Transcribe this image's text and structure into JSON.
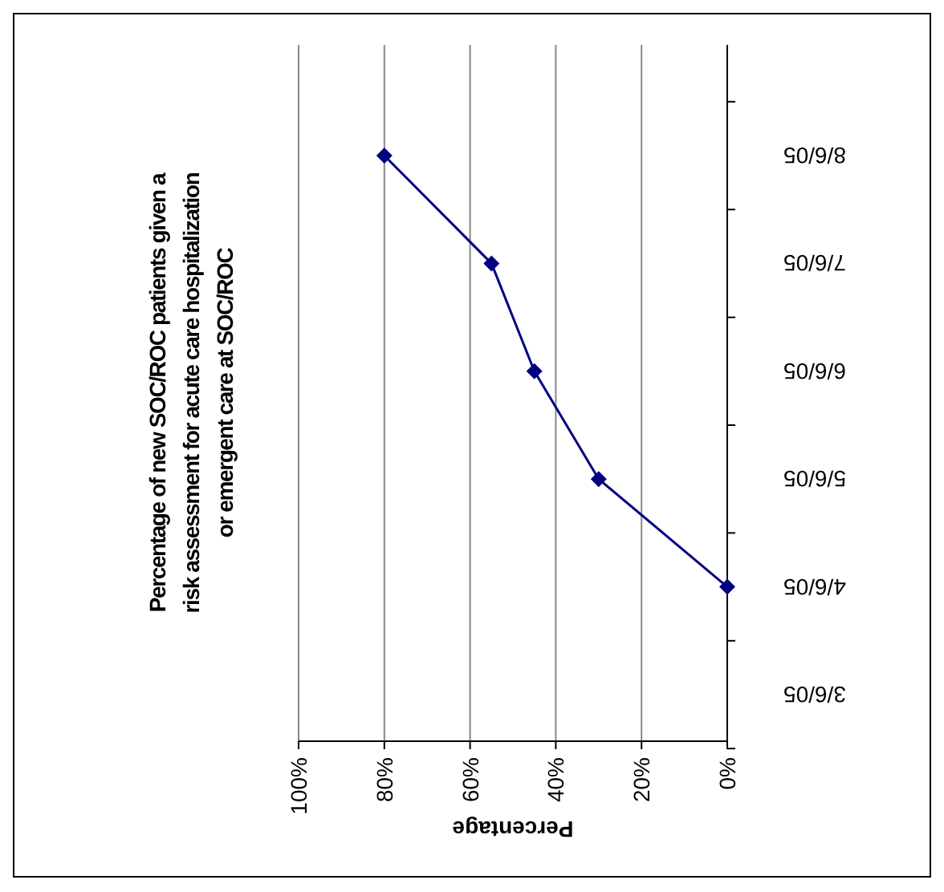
{
  "chart_data": {
    "type": "line",
    "orientation": "horizontal",
    "title": "Percentage of new SOC/ROC patients given a risk assessment for acute care hospitalization or emergent care at SOC/ROC",
    "xlabel": "Percentage",
    "categories": [
      "8/6/05",
      "7/6/05",
      "6/6/05",
      "5/6/05",
      "4/6/05",
      "3/6/05"
    ],
    "series": [
      {
        "color": "#000080",
        "values": [
          80,
          55,
          45,
          30,
          0,
          null
        ]
      }
    ],
    "xlim": [
      100,
      0
    ],
    "xticks": [
      {
        "value": 100,
        "label": "100%"
      },
      {
        "value": 80,
        "label": "80%"
      },
      {
        "value": 60,
        "label": "60%"
      },
      {
        "value": 40,
        "label": "40%"
      },
      {
        "value": 20,
        "label": "20%"
      },
      {
        "value": 0,
        "label": "0%"
      }
    ],
    "grid": "x",
    "marker": "diamond",
    "line_style": "solid"
  }
}
